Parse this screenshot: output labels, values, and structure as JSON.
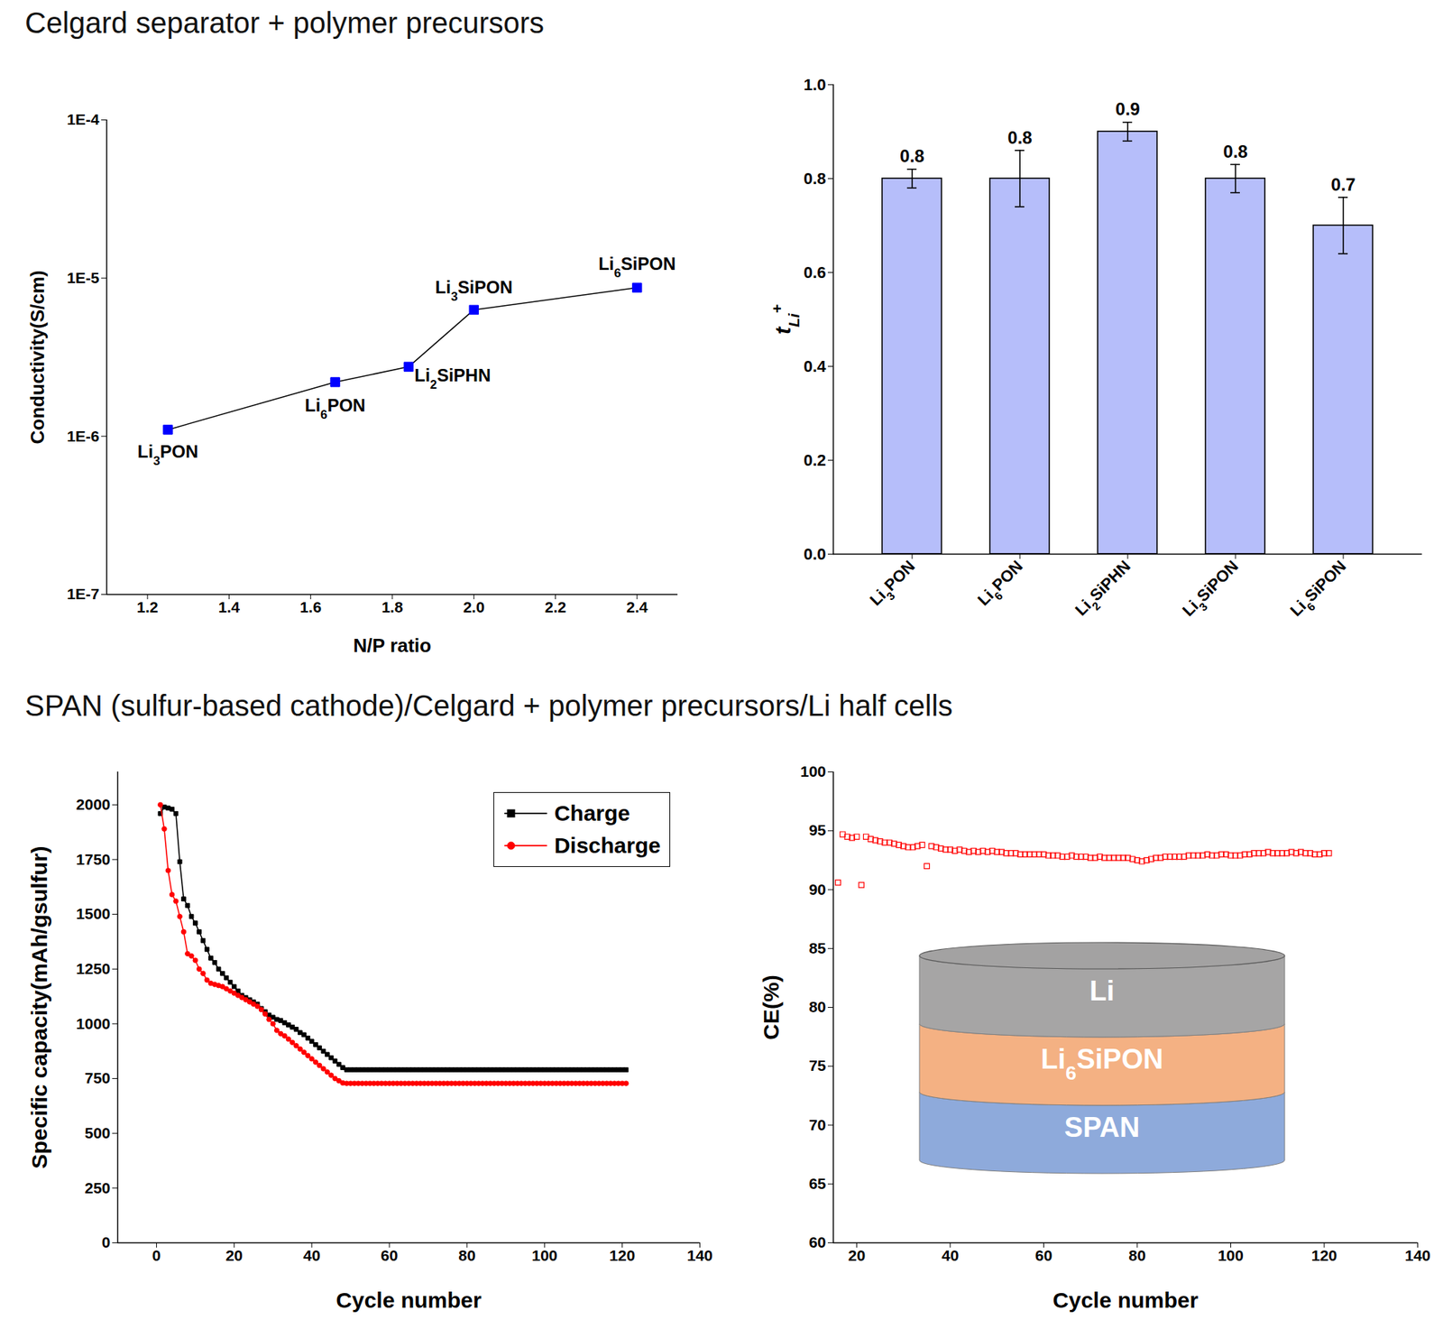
{
  "headings": [
    "Celgard separator + polymer precursors",
    "SPAN (sulfur-based cathode)/Celgard + polymer precursors/Li half cells"
  ],
  "chart_data": [
    {
      "type": "line",
      "xlabel": "N/P ratio",
      "ylabel": "Conductivity(S/cm)",
      "x": [
        1.25,
        1.66,
        1.84,
        2.0,
        2.4
      ],
      "values": [
        1.1e-06,
        2.2e-06,
        2.75e-06,
        6.3e-06,
        8.7e-06
      ],
      "annotations": [
        "Li3PON",
        "Li6PON",
        "Li2SiPHN",
        "Li3SiPON",
        "Li6SiPON"
      ],
      "color": "#0000ff",
      "marker": "square",
      "log": "y",
      "grid": false,
      "xlim": [
        1.1,
        2.5
      ],
      "xticks": [
        1.2,
        1.4,
        1.6,
        1.8,
        {
          "value": 2,
          "label": "2.0"
        },
        2.2,
        2.4
      ],
      "ylim": [
        1e-07,
        0.0001
      ],
      "yticks": [
        {
          "value": 1e-07,
          "label": "1E-7"
        },
        {
          "value": 1e-06,
          "label": "1E-6"
        },
        {
          "value": 1e-05,
          "label": "1E-5"
        },
        {
          "value": 0.0001,
          "label": "1E-4"
        }
      ]
    },
    {
      "type": "bar",
      "ylabel": "tLi+",
      "categories": [
        "Li3PON",
        "Li6PON",
        "Li2SiPHN",
        "Li3SiPON",
        "Li6SiPON"
      ],
      "values": [
        0.8,
        0.8,
        0.9,
        0.8,
        0.7
      ],
      "errors": [
        0.02,
        0.06,
        0.02,
        0.03,
        0.06
      ],
      "color": "#b6befa",
      "data_labels": true,
      "grid": false,
      "ylim": [
        0,
        1
      ],
      "yticks": [
        {
          "value": 0,
          "label": "0.0"
        },
        0.2,
        0.4,
        0.6,
        0.8,
        {
          "value": 1,
          "label": "1.0"
        }
      ]
    },
    {
      "type": "line",
      "xlabel": "Cycle number",
      "ylabel": "Specific capacity(mAh/gsulfur)",
      "x": [
        1,
        2,
        3,
        4,
        5,
        6,
        7,
        8,
        9,
        10,
        11,
        12,
        13,
        14,
        15,
        16,
        17,
        18,
        19,
        20,
        21,
        22,
        23,
        24,
        25,
        26,
        27,
        28,
        29,
        30,
        31,
        32,
        33,
        34,
        35,
        36,
        37,
        38,
        39,
        40,
        41,
        42,
        43,
        44,
        45,
        46,
        47,
        48,
        49,
        50,
        51,
        52,
        53,
        54,
        55,
        56,
        57,
        58,
        59,
        60,
        61,
        62,
        63,
        64,
        65,
        66,
        67,
        68,
        69,
        70,
        71,
        72,
        73,
        74,
        75,
        76,
        77,
        78,
        79,
        80,
        81,
        82,
        83,
        84,
        85,
        86,
        87,
        88,
        89,
        90,
        91,
        92,
        93,
        94,
        95,
        96,
        97,
        98,
        99,
        100,
        101,
        102,
        103,
        104,
        105,
        106,
        107,
        108,
        109,
        110,
        111,
        112,
        113,
        114,
        115,
        116,
        117,
        118,
        119,
        120,
        121
      ],
      "series": [
        {
          "name": "Charge",
          "color": "#000000",
          "marker": "square",
          "values": [
            1960,
            1990,
            1985,
            1980,
            1960,
            1740,
            1570,
            1540,
            1490,
            1460,
            1420,
            1380,
            1340,
            1300,
            1280,
            1250,
            1230,
            1210,
            1190,
            1170,
            1150,
            1130,
            1120,
            1110,
            1100,
            1090,
            1070,
            1055,
            1040,
            1030,
            1020,
            1015,
            1005,
            995,
            985,
            975,
            960,
            950,
            935,
            920,
            905,
            890,
            875,
            860,
            845,
            830,
            815,
            800,
            790,
            790,
            790,
            790,
            790,
            790,
            790,
            790,
            790,
            790,
            790,
            790,
            790,
            790,
            790,
            790,
            790,
            790,
            790,
            790,
            790,
            790,
            790,
            790,
            790,
            790,
            790,
            790,
            790,
            790,
            790,
            790,
            790,
            790,
            790,
            790,
            790,
            790,
            790,
            790,
            790,
            790,
            790,
            790,
            790,
            790,
            790,
            790,
            790,
            790,
            790,
            790,
            790,
            790,
            790,
            790,
            790,
            790,
            790,
            790,
            790,
            790,
            790,
            790,
            790,
            790,
            790,
            790,
            790,
            790,
            790,
            790,
            790
          ]
        },
        {
          "name": "Discharge",
          "color": "#ff0000",
          "marker": "circle",
          "values": [
            2000,
            1890,
            1700,
            1590,
            1560,
            1490,
            1420,
            1320,
            1310,
            1290,
            1250,
            1230,
            1200,
            1185,
            1180,
            1175,
            1170,
            1160,
            1150,
            1140,
            1130,
            1120,
            1110,
            1100,
            1090,
            1080,
            1065,
            1045,
            1020,
            1000,
            970,
            955,
            945,
            930,
            915,
            900,
            885,
            870,
            855,
            840,
            825,
            810,
            795,
            780,
            765,
            750,
            740,
            730,
            728,
            728,
            728,
            728,
            728,
            728,
            728,
            728,
            728,
            728,
            728,
            728,
            728,
            728,
            728,
            728,
            728,
            728,
            728,
            728,
            728,
            728,
            728,
            728,
            728,
            728,
            728,
            728,
            728,
            728,
            728,
            728,
            728,
            728,
            728,
            728,
            728,
            728,
            728,
            728,
            728,
            728,
            728,
            728,
            728,
            728,
            728,
            728,
            728,
            728,
            728,
            728,
            728,
            728,
            728,
            728,
            728,
            728,
            728,
            728,
            728,
            728,
            728,
            728,
            728,
            728,
            728,
            728,
            728,
            728,
            728,
            728,
            728
          ]
        }
      ],
      "legend": "upper right",
      "grid": false,
      "xlim": [
        -10,
        140
      ],
      "xticks": [
        0,
        20,
        40,
        60,
        80,
        100,
        120,
        140
      ],
      "ylim": [
        0,
        2150
      ],
      "yticks": [
        0,
        250,
        500,
        750,
        1000,
        1250,
        1500,
        1750,
        2000
      ]
    },
    {
      "type": "scatter",
      "xlabel": "Cycle number",
      "ylabel": "CE(%)",
      "x": [
        16,
        17,
        18,
        19,
        20,
        21,
        22,
        23,
        24,
        25,
        26,
        27,
        28,
        29,
        30,
        31,
        32,
        33,
        34,
        35,
        36,
        37,
        38,
        39,
        40,
        41,
        42,
        43,
        44,
        45,
        46,
        47,
        48,
        49,
        50,
        51,
        52,
        53,
        54,
        55,
        56,
        57,
        58,
        59,
        60,
        61,
        62,
        63,
        64,
        65,
        66,
        67,
        68,
        69,
        70,
        71,
        72,
        73,
        74,
        75,
        76,
        77,
        78,
        79,
        80,
        81,
        82,
        83,
        84,
        85,
        86,
        87,
        88,
        89,
        90,
        91,
        92,
        93,
        94,
        95,
        96,
        97,
        98,
        99,
        100,
        101,
        102,
        103,
        104,
        105,
        106,
        107,
        108,
        109,
        110,
        111,
        112,
        113,
        114,
        115,
        116,
        117,
        118,
        119,
        120,
        121
      ],
      "values": [
        90.6,
        94.7,
        94.5,
        94.4,
        94.5,
        90.4,
        94.5,
        94.3,
        94.2,
        94.1,
        94.0,
        94.0,
        93.9,
        93.8,
        93.7,
        93.6,
        93.6,
        93.7,
        93.8,
        92.0,
        93.7,
        93.6,
        93.5,
        93.4,
        93.4,
        93.3,
        93.4,
        93.3,
        93.2,
        93.3,
        93.2,
        93.3,
        93.2,
        93.3,
        93.2,
        93.2,
        93.1,
        93.1,
        93.1,
        93.0,
        93.0,
        93.0,
        93.0,
        93.0,
        93.0,
        92.9,
        92.9,
        92.9,
        92.8,
        92.8,
        92.9,
        92.8,
        92.8,
        92.8,
        92.7,
        92.7,
        92.8,
        92.7,
        92.7,
        92.7,
        92.7,
        92.7,
        92.7,
        92.6,
        92.5,
        92.4,
        92.5,
        92.6,
        92.7,
        92.7,
        92.8,
        92.8,
        92.8,
        92.8,
        92.8,
        92.9,
        92.9,
        92.9,
        92.9,
        93.0,
        92.9,
        92.9,
        93.0,
        93.0,
        92.9,
        92.9,
        92.9,
        93.0,
        93.0,
        93.1,
        93.1,
        93.1,
        93.2,
        93.1,
        93.1,
        93.1,
        93.1,
        93.2,
        93.1,
        93.2,
        93.1,
        93.1,
        93.0,
        93.0,
        93.1,
        93.1
      ],
      "color": "#ff0000",
      "marker": "square-open",
      "grid": false,
      "annotations": [
        "Li",
        "Li6SiPON",
        "SPAN"
      ],
      "xlim": [
        15,
        140
      ],
      "xticks": [
        20,
        40,
        60,
        80,
        100,
        120,
        140
      ],
      "ylim": [
        60,
        100
      ],
      "yticks": [
        60,
        65,
        70,
        75,
        80,
        85,
        90,
        95,
        100
      ]
    }
  ]
}
